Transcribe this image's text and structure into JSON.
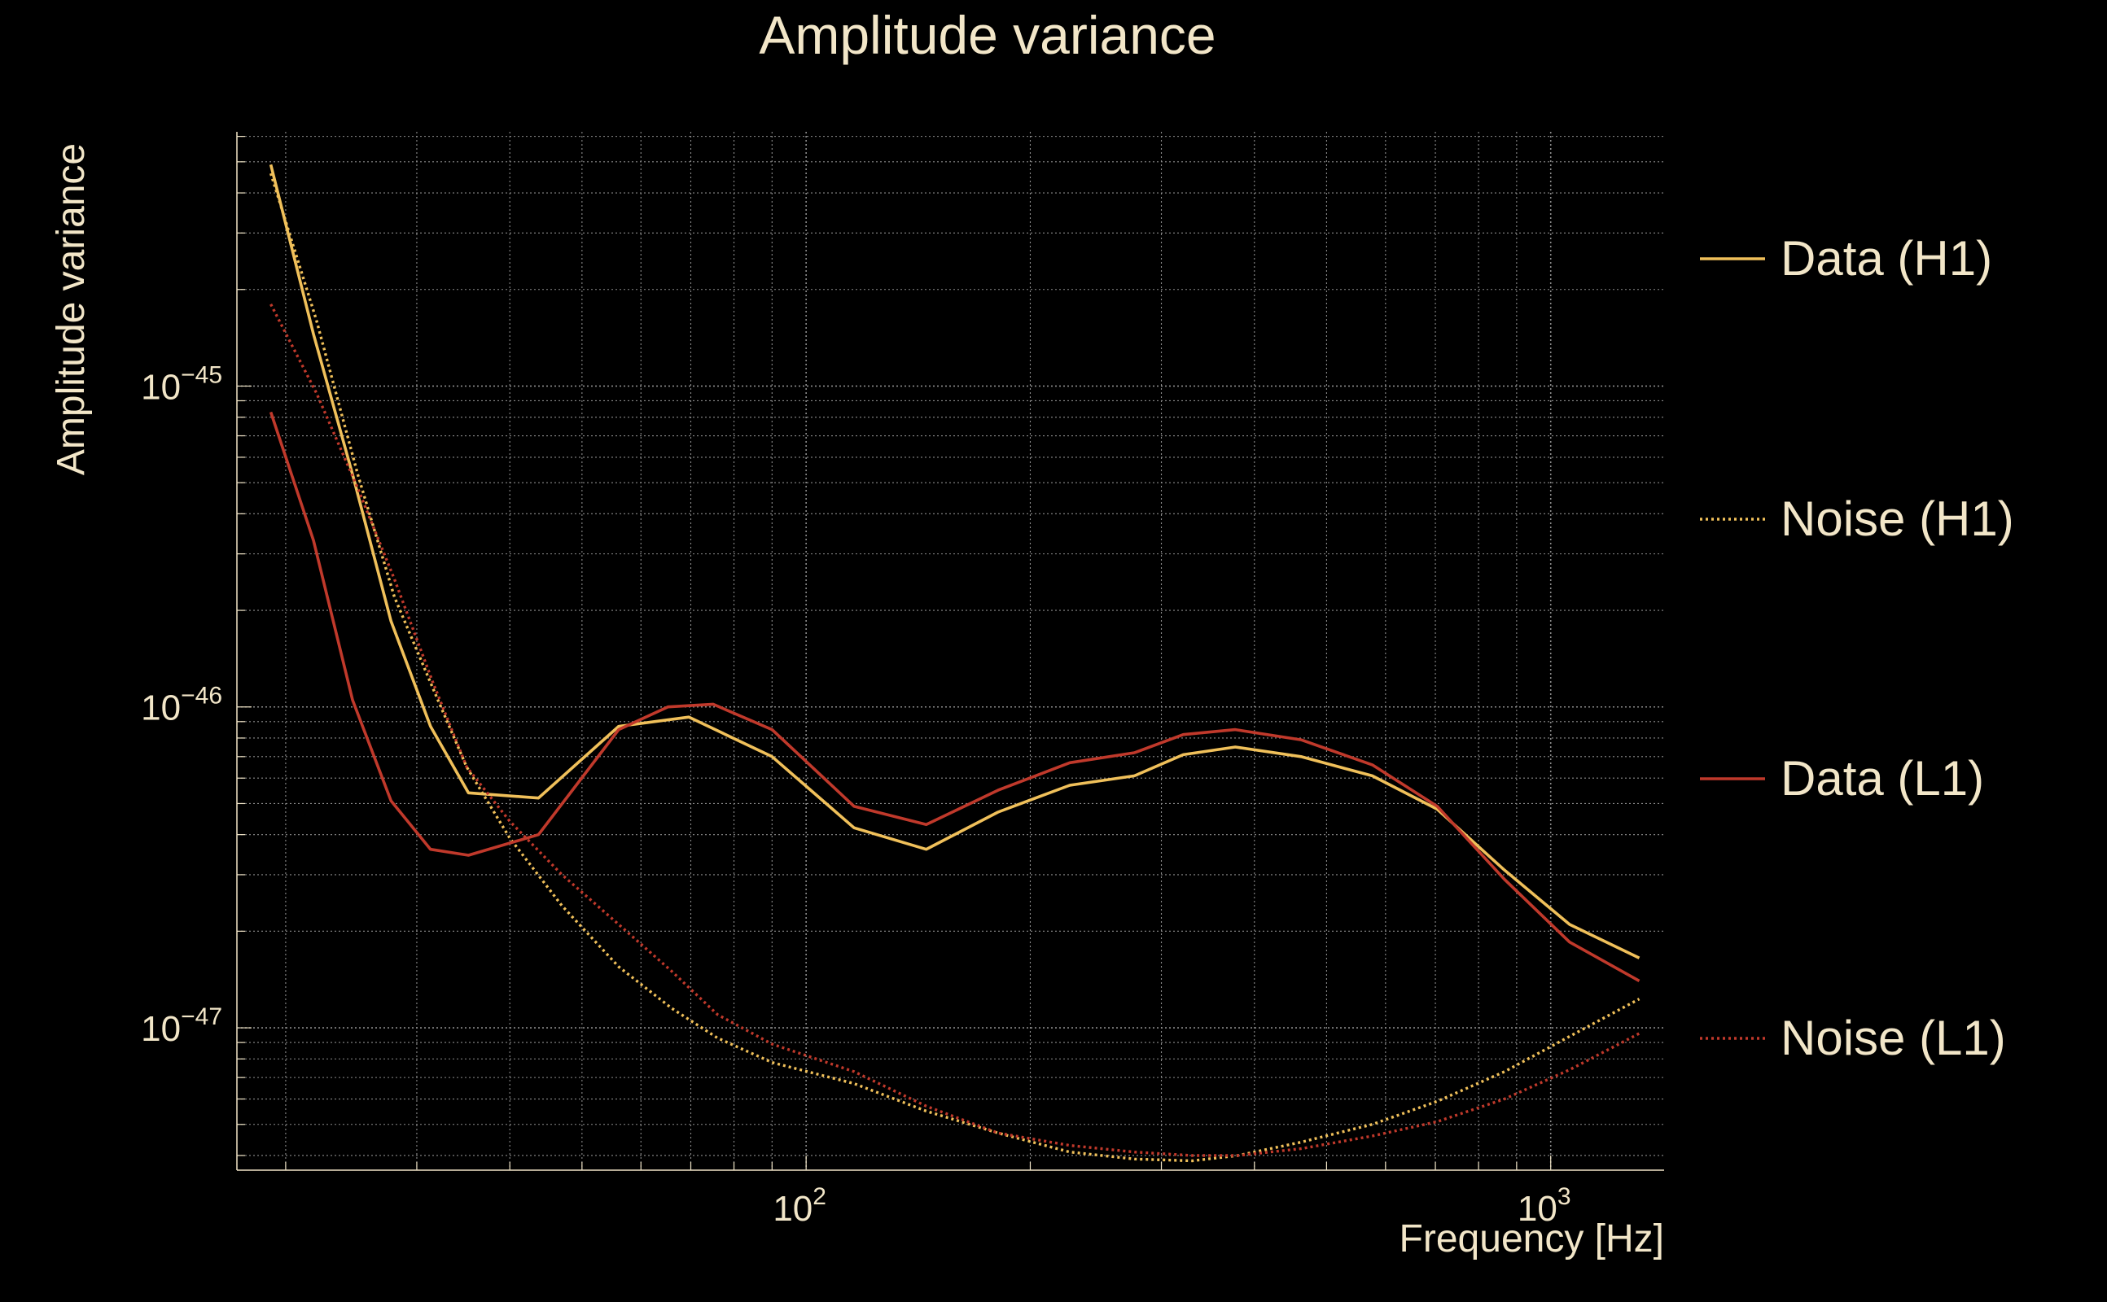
{
  "chart_data": {
    "type": "line",
    "title": "Amplitude variance",
    "xlabel": "Frequency [Hz]",
    "ylabel": "Amplitude variance",
    "x_scale": "log",
    "y_scale": "log",
    "xlim": [
      17.2,
      1420
    ],
    "ylim": [
      3.6e-48,
      6.2e-45
    ],
    "xticks": [
      {
        "value": 100,
        "base": "10",
        "exp": "2"
      },
      {
        "value": 1000,
        "base": "10",
        "exp": "3"
      }
    ],
    "yticks": [
      {
        "value": 1e-45,
        "base": "10",
        "exp": "−45"
      },
      {
        "value": 1e-46,
        "base": "10",
        "exp": "−46"
      },
      {
        "value": 1e-47,
        "base": "10",
        "exp": "−47"
      }
    ],
    "grid": true,
    "legend_position": "right",
    "colors": {
      "background": "#000000",
      "text": "#f2e6c8",
      "grid": "#8c8c8c",
      "h1": "#f0c05a",
      "l1": "#c0392b"
    },
    "series": [
      {
        "name": "Data (H1)",
        "color": "#f0c05a",
        "style": "solid",
        "points": [
          [
            19.1,
            4.9e-45
          ],
          [
            21.8,
            1.45e-45
          ],
          [
            24.6,
            5.3e-46
          ],
          [
            27.7,
            1.85e-46
          ],
          [
            31.3,
            8.7e-47
          ],
          [
            35.2,
            5.4e-47
          ],
          [
            43.7,
            5.2e-47
          ],
          [
            56,
            8.7e-47
          ],
          [
            69.6,
            9.3e-47
          ],
          [
            90,
            7e-47
          ],
          [
            116,
            4.2e-47
          ],
          [
            145,
            3.6e-47
          ],
          [
            181,
            4.7e-47
          ],
          [
            226,
            5.7e-47
          ],
          [
            276,
            6.1e-47
          ],
          [
            321,
            7.1e-47
          ],
          [
            377,
            7.5e-47
          ],
          [
            462,
            7e-47
          ],
          [
            576,
            6.1e-47
          ],
          [
            704,
            4.8e-47
          ],
          [
            867,
            3.1e-47
          ],
          [
            1060,
            2.1e-47
          ],
          [
            1315,
            1.65e-47
          ]
        ]
      },
      {
        "name": "Noise (H1)",
        "color": "#f0c05a",
        "style": "dotted",
        "points": [
          [
            19.1,
            4.6e-45
          ],
          [
            22,
            1.6e-45
          ],
          [
            25,
            5.3e-46
          ],
          [
            28,
            2.2e-46
          ],
          [
            31.5,
            1.15e-46
          ],
          [
            35,
            6.5e-47
          ],
          [
            40,
            3.9e-47
          ],
          [
            47,
            2.4e-47
          ],
          [
            56,
            1.55e-47
          ],
          [
            66,
            1.15e-47
          ],
          [
            76,
            9.3e-48
          ],
          [
            90,
            7.8e-48
          ],
          [
            116,
            6.7e-48
          ],
          [
            145,
            5.5e-48
          ],
          [
            181,
            4.7e-48
          ],
          [
            226,
            4.1e-48
          ],
          [
            276,
            3.9e-48
          ],
          [
            330,
            3.85e-48
          ],
          [
            380,
            4e-48
          ],
          [
            462,
            4.4e-48
          ],
          [
            576,
            5e-48
          ],
          [
            704,
            5.9e-48
          ],
          [
            867,
            7.3e-48
          ],
          [
            1060,
            9.4e-48
          ],
          [
            1315,
            1.23e-47
          ]
        ]
      },
      {
        "name": "Data (L1)",
        "color": "#c0392b",
        "style": "solid",
        "points": [
          [
            19.1,
            8.3e-46
          ],
          [
            21.8,
            3.3e-46
          ],
          [
            24.6,
            1.05e-46
          ],
          [
            27.7,
            5.1e-47
          ],
          [
            31.3,
            3.6e-47
          ],
          [
            35.2,
            3.45e-47
          ],
          [
            43.7,
            4e-47
          ],
          [
            56,
            8.5e-47
          ],
          [
            65.2,
            1e-46
          ],
          [
            75,
            1.02e-46
          ],
          [
            90,
            8.5e-47
          ],
          [
            116,
            4.9e-47
          ],
          [
            145,
            4.3e-47
          ],
          [
            181,
            5.5e-47
          ],
          [
            226,
            6.7e-47
          ],
          [
            276,
            7.2e-47
          ],
          [
            321,
            8.2e-47
          ],
          [
            377,
            8.5e-47
          ],
          [
            462,
            7.9e-47
          ],
          [
            576,
            6.6e-47
          ],
          [
            704,
            4.9e-47
          ],
          [
            867,
            2.9e-47
          ],
          [
            1060,
            1.85e-47
          ],
          [
            1315,
            1.4e-47
          ]
        ]
      },
      {
        "name": "Noise (L1)",
        "color": "#c0392b",
        "style": "dotted",
        "points": [
          [
            19.1,
            1.8e-45
          ],
          [
            22,
            9.5e-46
          ],
          [
            25,
            4.8e-46
          ],
          [
            28,
            2.5e-46
          ],
          [
            31.5,
            1.2e-46
          ],
          [
            35,
            6.5e-47
          ],
          [
            40,
            4.4e-47
          ],
          [
            47,
            3e-47
          ],
          [
            56,
            2.1e-47
          ],
          [
            66,
            1.5e-47
          ],
          [
            76,
            1.1e-47
          ],
          [
            90,
            8.9e-48
          ],
          [
            116,
            7.3e-48
          ],
          [
            145,
            5.7e-48
          ],
          [
            181,
            4.7e-48
          ],
          [
            226,
            4.3e-48
          ],
          [
            276,
            4.1e-48
          ],
          [
            330,
            4e-48
          ],
          [
            380,
            4e-48
          ],
          [
            462,
            4.2e-48
          ],
          [
            576,
            4.6e-48
          ],
          [
            704,
            5.1e-48
          ],
          [
            867,
            6e-48
          ],
          [
            1060,
            7.4e-48
          ],
          [
            1315,
            9.6e-48
          ]
        ]
      }
    ]
  }
}
